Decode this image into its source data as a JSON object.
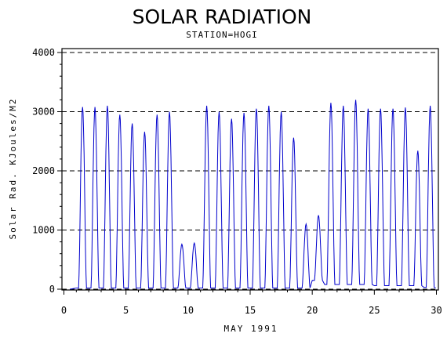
{
  "chart_data": {
    "type": "line",
    "title": "SOLAR RADIATION",
    "subtitle": "STATION=HOGI",
    "xlabel": "MAY 1991",
    "ylabel": "Solar Rad. KJoules/M2",
    "xlim": [
      0,
      30
    ],
    "ylim": [
      0,
      4000
    ],
    "xticks": [
      0,
      5,
      10,
      15,
      20,
      25,
      30
    ],
    "yticks": [
      0,
      1000,
      2000,
      3000,
      4000
    ],
    "grid": "horizontal dashed",
    "series": [
      {
        "color": "#0000cc",
        "daily_peaks": [
          3080,
          3080,
          3100,
          2950,
          2800,
          2660,
          2950,
          3000,
          760,
          780,
          3100,
          3000,
          2880,
          2980,
          3050,
          3100,
          3000,
          2560,
          1100,
          1250,
          3150,
          3100,
          3200,
          3050,
          3050,
          3050,
          3070,
          2340,
          3100
        ],
        "peak_times": [
          1.5,
          2.5,
          3.5,
          4.5,
          5.5,
          6.5,
          7.5,
          8.5,
          9.5,
          10.5,
          11.5,
          12.5,
          13.5,
          14.5,
          15.5,
          16.5,
          17.5,
          18.5,
          19.5,
          20.5,
          21.5,
          22.5,
          23.5,
          24.5,
          25.5,
          26.5,
          27.5,
          28.5,
          29.5
        ],
        "night_baseline": [
          20,
          20,
          20,
          20,
          20,
          20,
          20,
          20,
          20,
          20,
          20,
          20,
          20,
          20,
          20,
          20,
          20,
          20,
          20,
          150,
          80,
          80,
          80,
          80,
          60,
          60,
          60,
          60,
          30
        ]
      }
    ]
  }
}
